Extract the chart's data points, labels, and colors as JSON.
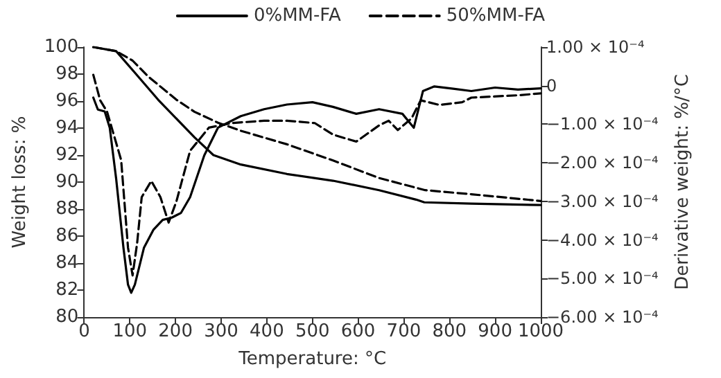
{
  "chart_data": {
    "type": "line",
    "xlabel": "Temperature: °C",
    "ylabel": "Weight loss: %",
    "y2label": "Derivative weight: %/°C",
    "xlim": [
      0,
      1000
    ],
    "xticks": [
      0,
      100,
      200,
      300,
      400,
      500,
      600,
      700,
      800,
      900,
      1000
    ],
    "ylim": [
      80,
      100
    ],
    "yticks": [
      80,
      82,
      84,
      86,
      88,
      90,
      92,
      94,
      96,
      98,
      100
    ],
    "y2lim": [
      -0.0006,
      0.0001
    ],
    "y2ticks": [
      {
        "value": -0.0006,
        "label": "−6.00 × 10⁻⁴"
      },
      {
        "value": -0.0005,
        "label": "−5.00 × 10⁻⁴"
      },
      {
        "value": -0.0004,
        "label": "−4.00 × 10⁻⁴"
      },
      {
        "value": -0.0003,
        "label": "−3.00 × 10⁻⁴"
      },
      {
        "value": -0.0002,
        "label": "−2.00 × 10⁻⁴"
      },
      {
        "value": -0.0001,
        "label": "−1.00 × 10⁻⁴"
      },
      0,
      {
        "value": 0.0001,
        "label": "1.00 × 10⁻⁴"
      }
    ],
    "grid": false,
    "legend": "top",
    "marker": "none",
    "series": [
      {
        "name": "0%MM-FA",
        "color": "#000000",
        "line_style": "solid",
        "x": [
          20,
          70,
          111,
          162,
          242,
          283,
          343,
          444,
          545,
          646,
          727,
          745,
          848,
          1000
        ],
        "values": [
          100,
          99.7,
          98.1,
          96.1,
          93.3,
          92.0,
          91.3,
          90.6,
          90.1,
          89.4,
          88.7,
          88.5,
          88.4,
          88.3
        ]
      },
      {
        "name": "50%MM-FA",
        "color": "#000000",
        "line_style": "dashed",
        "x": [
          20,
          70,
          106,
          141,
          202,
          242,
          293,
          343,
          444,
          545,
          646,
          747,
          848,
          1000
        ],
        "values": [
          100,
          99.7,
          99.0,
          97.8,
          96.1,
          95.2,
          94.4,
          93.8,
          92.8,
          91.6,
          90.3,
          89.4,
          89.1,
          88.6
        ]
      },
      {
        "axis": "y2",
        "color": "#000000",
        "line_style": "solid",
        "x": [
          20,
          30,
          45,
          56,
          70,
          86,
          96,
          103,
          111,
          131,
          152,
          172,
          192,
          212,
          232,
          263,
          293,
          343,
          394,
          444,
          500,
          545,
          596,
          646,
          697,
          722,
          742,
          767,
          808,
          848,
          900,
          950,
          1000
        ],
        "values": [
          -3.1e-05,
          -6.2e-05,
          -6.7e-05,
          -0.000109,
          -0.000241,
          -0.00042,
          -0.000516,
          -0.000537,
          -0.000516,
          -0.00042,
          -0.000373,
          -0.000348,
          -0.000342,
          -0.00033,
          -0.000289,
          -0.000181,
          -0.000109,
          -7.9e-05,
          -6.1e-05,
          -4.9e-05,
          -4.3e-05,
          -5.5e-05,
          -7.3e-05,
          -6.1e-05,
          -7.3e-05,
          -0.000109,
          -1.4e-05,
          -2e-06,
          -8e-06,
          -1.4e-05,
          -5e-06,
          -1e-05,
          -7e-06
        ]
      },
      {
        "axis": "y2",
        "color": "#000000",
        "line_style": "dashed",
        "x": [
          20,
          35,
          50,
          81,
          96,
          106,
          116,
          126,
          147,
          167,
          185,
          202,
          232,
          273,
          323,
          394,
          444,
          505,
          545,
          596,
          646,
          667,
          687,
          717,
          737,
          778,
          828,
          848,
          950,
          1000
        ],
        "values": [
          2.8e-05,
          -3.8e-05,
          -6.7e-05,
          -0.000193,
          -0.00042,
          -0.000492,
          -0.000408,
          -0.000289,
          -0.000247,
          -0.000289,
          -0.000355,
          -0.0003,
          -0.000169,
          -0.000109,
          -9.7e-05,
          -9.1e-05,
          -9.1e-05,
          -9.7e-05,
          -0.000127,
          -0.000145,
          -0.000103,
          -9.1e-05,
          -0.000115,
          -8.5e-05,
          -3.8e-05,
          -5e-05,
          -4.3e-05,
          -3.1e-05,
          -2.5e-05,
          -2e-05
        ]
      }
    ]
  }
}
